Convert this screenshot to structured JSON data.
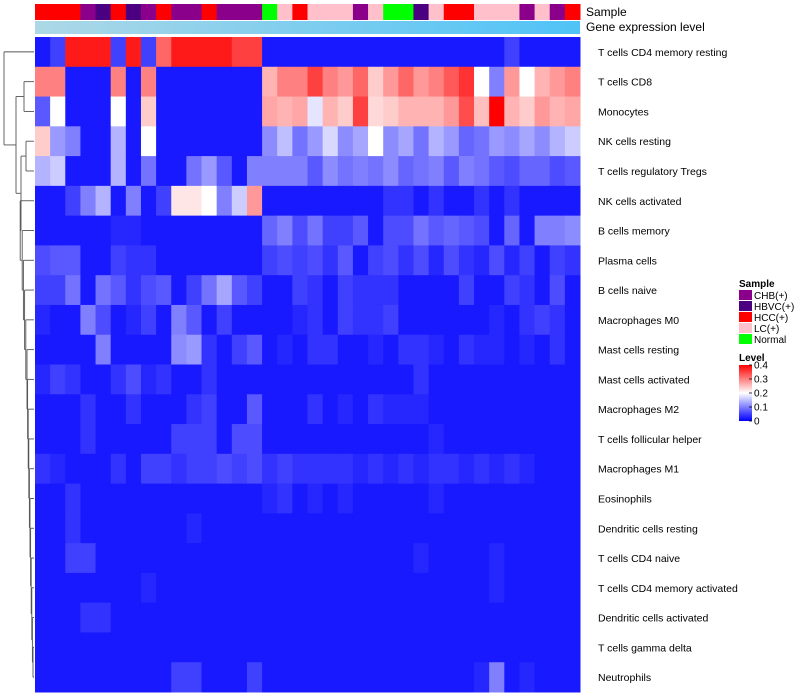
{
  "chart_data": {
    "type": "heatmap",
    "title": "",
    "annotation_labels": {
      "sample": "Sample",
      "expression": "Gene expression level"
    },
    "sample_groups": [
      {
        "name": "CHB(+)",
        "color": "#8B008B"
      },
      {
        "name": "HBVC(+)",
        "color": "#4B0082"
      },
      {
        "name": "HCC(+)",
        "color": "#FF0000"
      },
      {
        "name": "LC(+)",
        "color": "#FFC0CB"
      },
      {
        "name": "Normal",
        "color": "#00FF00"
      }
    ],
    "sample_annotation": [
      "HCC(+)",
      "HCC(+)",
      "HCC(+)",
      "CHB(+)",
      "HBVC(+)",
      "HCC(+)",
      "HBVC(+)",
      "CHB(+)",
      "HCC(+)",
      "CHB(+)",
      "CHB(+)",
      "HCC(+)",
      "CHB(+)",
      "CHB(+)",
      "CHB(+)",
      "Normal",
      "LC(+)",
      "HCC(+)",
      "LC(+)",
      "LC(+)",
      "LC(+)",
      "CHB(+)",
      "LC(+)",
      "Normal",
      "Normal",
      "HBVC(+)",
      "LC(+)",
      "HCC(+)",
      "HCC(+)",
      "LC(+)",
      "LC(+)",
      "LC(+)",
      "CHB(+)",
      "LC(+)",
      "CHB(+)",
      "HCC(+)"
    ],
    "row_labels": [
      "T cells CD4 memory resting",
      "T cells CD8",
      "Monocytes",
      "NK cells resting",
      "T cells regulatory  Tregs",
      "NK cells activated",
      "B cells memory",
      "Plasma cells",
      "B cells naive",
      "Macrophages M0",
      "Mast cells resting",
      "Mast cells activated",
      "Macrophages M2",
      "T cells follicular helper",
      "Macrophages M1",
      "Eosinophils",
      "Dendritic cells resting",
      "T cells CD4 naive",
      "T cells CD4 memory activated",
      "Dendritic cells activated",
      "T cells gamma delta",
      "Neutrophils"
    ],
    "values": [
      [
        0.02,
        0.05,
        0.38,
        0.38,
        0.38,
        0.05,
        0.38,
        0.05,
        0.32,
        0.38,
        0.38,
        0.38,
        0.38,
        0.35,
        0.35,
        0.02,
        0.02,
        0.02,
        0.02,
        0.02,
        0.02,
        0.02,
        0.02,
        0.02,
        0.02,
        0.02,
        0.02,
        0.02,
        0.02,
        0.02,
        0.02,
        0.05,
        0.02,
        0.02,
        0.02,
        0.02
      ],
      [
        0.3,
        0.3,
        0.02,
        0.02,
        0.02,
        0.3,
        0.02,
        0.3,
        0.02,
        0.02,
        0.02,
        0.02,
        0.02,
        0.02,
        0.02,
        0.26,
        0.3,
        0.3,
        0.35,
        0.3,
        0.28,
        0.32,
        0.24,
        0.28,
        0.32,
        0.28,
        0.3,
        0.33,
        0.36,
        0.2,
        0.1,
        0.28,
        0.2,
        0.26,
        0.28,
        0.3
      ],
      [
        0.07,
        0.2,
        0.02,
        0.02,
        0.02,
        0.2,
        0.02,
        0.24,
        0.02,
        0.02,
        0.02,
        0.02,
        0.02,
        0.02,
        0.02,
        0.27,
        0.26,
        0.27,
        0.18,
        0.26,
        0.24,
        0.35,
        0.23,
        0.24,
        0.26,
        0.26,
        0.26,
        0.28,
        0.34,
        0.25,
        0.4,
        0.26,
        0.24,
        0.28,
        0.26,
        0.27
      ],
      [
        0.24,
        0.12,
        0.1,
        0.02,
        0.02,
        0.14,
        0.02,
        0.2,
        0.02,
        0.02,
        0.02,
        0.02,
        0.02,
        0.02,
        0.02,
        0.11,
        0.15,
        0.09,
        0.12,
        0.17,
        0.11,
        0.13,
        0.2,
        0.11,
        0.13,
        0.09,
        0.14,
        0.12,
        0.08,
        0.09,
        0.12,
        0.11,
        0.13,
        0.11,
        0.14,
        0.16
      ],
      [
        0.14,
        0.16,
        0.02,
        0.02,
        0.02,
        0.14,
        0.02,
        0.09,
        0.02,
        0.02,
        0.09,
        0.12,
        0.07,
        0.02,
        0.1,
        0.1,
        0.1,
        0.1,
        0.07,
        0.11,
        0.09,
        0.1,
        0.09,
        0.11,
        0.08,
        0.09,
        0.1,
        0.07,
        0.1,
        0.09,
        0.07,
        0.06,
        0.08,
        0.08,
        0.06,
        0.07
      ],
      [
        0.02,
        0.02,
        0.05,
        0.1,
        0.14,
        0.02,
        0.1,
        0.02,
        0.05,
        0.22,
        0.22,
        0.2,
        0.1,
        0.16,
        0.28,
        0.02,
        0.02,
        0.02,
        0.02,
        0.02,
        0.02,
        0.02,
        0.02,
        0.04,
        0.04,
        0.02,
        0.04,
        0.02,
        0.02,
        0.04,
        0.02,
        0.04,
        0.02,
        0.02,
        0.02,
        0.02
      ],
      [
        0.02,
        0.02,
        0.02,
        0.02,
        0.02,
        0.03,
        0.03,
        0.02,
        0.02,
        0.02,
        0.02,
        0.02,
        0.02,
        0.02,
        0.02,
        0.08,
        0.1,
        0.06,
        0.09,
        0.05,
        0.05,
        0.07,
        0.02,
        0.06,
        0.06,
        0.09,
        0.07,
        0.08,
        0.07,
        0.06,
        0.02,
        0.08,
        0.02,
        0.1,
        0.1,
        0.11
      ],
      [
        0.06,
        0.07,
        0.07,
        0.02,
        0.02,
        0.05,
        0.04,
        0.04,
        0.02,
        0.02,
        0.02,
        0.02,
        0.02,
        0.02,
        0.02,
        0.05,
        0.06,
        0.05,
        0.06,
        0.04,
        0.07,
        0.02,
        0.05,
        0.06,
        0.04,
        0.06,
        0.03,
        0.06,
        0.04,
        0.03,
        0.06,
        0.03,
        0.05,
        0.02,
        0.05,
        0.04
      ],
      [
        0.05,
        0.05,
        0.09,
        0.02,
        0.09,
        0.07,
        0.04,
        0.06,
        0.07,
        0.02,
        0.05,
        0.09,
        0.13,
        0.07,
        0.05,
        0.02,
        0.02,
        0.05,
        0.04,
        0.02,
        0.05,
        0.04,
        0.04,
        0.04,
        0.02,
        0.02,
        0.02,
        0.02,
        0.05,
        0.02,
        0.02,
        0.05,
        0.04,
        0.02,
        0.06,
        0.02
      ],
      [
        0.03,
        0.02,
        0.02,
        0.1,
        0.06,
        0.02,
        0.03,
        0.05,
        0.02,
        0.1,
        0.07,
        0.02,
        0.05,
        0.02,
        0.02,
        0.02,
        0.02,
        0.03,
        0.04,
        0.02,
        0.05,
        0.04,
        0.04,
        0.05,
        0.02,
        0.02,
        0.02,
        0.02,
        0.02,
        0.02,
        0.03,
        0.02,
        0.04,
        0.05,
        0.04,
        0.02
      ],
      [
        0.02,
        0.02,
        0.02,
        0.02,
        0.1,
        0.02,
        0.02,
        0.02,
        0.02,
        0.11,
        0.12,
        0.04,
        0.02,
        0.05,
        0.07,
        0.02,
        0.03,
        0.02,
        0.04,
        0.04,
        0.02,
        0.02,
        0.03,
        0.02,
        0.04,
        0.04,
        0.03,
        0.02,
        0.04,
        0.03,
        0.03,
        0.02,
        0.03,
        0.02,
        0.04,
        0.02
      ],
      [
        0.03,
        0.05,
        0.04,
        0.02,
        0.02,
        0.04,
        0.06,
        0.03,
        0.04,
        0.02,
        0.02,
        0.04,
        0.02,
        0.02,
        0.02,
        0.02,
        0.02,
        0.02,
        0.02,
        0.02,
        0.02,
        0.02,
        0.02,
        0.02,
        0.02,
        0.04,
        0.02,
        0.02,
        0.02,
        0.02,
        0.02,
        0.02,
        0.02,
        0.02,
        0.02,
        0.02
      ],
      [
        0.02,
        0.02,
        0.02,
        0.04,
        0.02,
        0.02,
        0.04,
        0.02,
        0.02,
        0.02,
        0.04,
        0.05,
        0.02,
        0.02,
        0.07,
        0.02,
        0.02,
        0.02,
        0.04,
        0.02,
        0.03,
        0.02,
        0.04,
        0.03,
        0.03,
        0.03,
        0.02,
        0.02,
        0.02,
        0.02,
        0.02,
        0.02,
        0.02,
        0.02,
        0.02,
        0.02
      ],
      [
        0.02,
        0.02,
        0.02,
        0.04,
        0.02,
        0.02,
        0.02,
        0.02,
        0.02,
        0.05,
        0.05,
        0.05,
        0.02,
        0.06,
        0.06,
        0.02,
        0.02,
        0.02,
        0.02,
        0.02,
        0.02,
        0.02,
        0.02,
        0.02,
        0.02,
        0.02,
        0.03,
        0.02,
        0.02,
        0.02,
        0.02,
        0.02,
        0.02,
        0.02,
        0.02,
        0.02
      ],
      [
        0.04,
        0.03,
        0.02,
        0.02,
        0.02,
        0.04,
        0.02,
        0.05,
        0.05,
        0.04,
        0.05,
        0.05,
        0.06,
        0.05,
        0.06,
        0.04,
        0.05,
        0.04,
        0.04,
        0.04,
        0.04,
        0.03,
        0.04,
        0.03,
        0.04,
        0.03,
        0.04,
        0.04,
        0.03,
        0.04,
        0.03,
        0.04,
        0.03,
        0.02,
        0.02,
        0.02
      ],
      [
        0.02,
        0.02,
        0.04,
        0.02,
        0.02,
        0.02,
        0.02,
        0.02,
        0.02,
        0.02,
        0.02,
        0.02,
        0.02,
        0.02,
        0.02,
        0.03,
        0.04,
        0.02,
        0.03,
        0.02,
        0.03,
        0.02,
        0.02,
        0.02,
        0.02,
        0.02,
        0.03,
        0.02,
        0.02,
        0.02,
        0.02,
        0.02,
        0.02,
        0.02,
        0.02,
        0.02
      ],
      [
        0.02,
        0.02,
        0.04,
        0.02,
        0.02,
        0.02,
        0.02,
        0.02,
        0.02,
        0.02,
        0.03,
        0.02,
        0.02,
        0.02,
        0.02,
        0.02,
        0.02,
        0.02,
        0.02,
        0.02,
        0.02,
        0.02,
        0.02,
        0.02,
        0.02,
        0.02,
        0.02,
        0.02,
        0.02,
        0.02,
        0.02,
        0.02,
        0.02,
        0.02,
        0.02,
        0.02
      ],
      [
        0.02,
        0.02,
        0.05,
        0.05,
        0.02,
        0.02,
        0.02,
        0.02,
        0.02,
        0.02,
        0.02,
        0.02,
        0.02,
        0.02,
        0.02,
        0.02,
        0.02,
        0.02,
        0.02,
        0.02,
        0.02,
        0.02,
        0.02,
        0.02,
        0.02,
        0.03,
        0.02,
        0.02,
        0.02,
        0.02,
        0.03,
        0.02,
        0.02,
        0.02,
        0.02,
        0.02
      ],
      [
        0.02,
        0.02,
        0.02,
        0.02,
        0.02,
        0.02,
        0.02,
        0.03,
        0.02,
        0.02,
        0.02,
        0.02,
        0.02,
        0.02,
        0.02,
        0.02,
        0.02,
        0.02,
        0.02,
        0.02,
        0.02,
        0.02,
        0.02,
        0.02,
        0.02,
        0.02,
        0.02,
        0.02,
        0.02,
        0.02,
        0.03,
        0.02,
        0.02,
        0.02,
        0.02,
        0.02
      ],
      [
        0.02,
        0.02,
        0.02,
        0.04,
        0.04,
        0.02,
        0.02,
        0.02,
        0.02,
        0.02,
        0.02,
        0.02,
        0.02,
        0.02,
        0.02,
        0.02,
        0.02,
        0.02,
        0.02,
        0.02,
        0.02,
        0.02,
        0.02,
        0.02,
        0.02,
        0.02,
        0.02,
        0.02,
        0.02,
        0.02,
        0.02,
        0.02,
        0.02,
        0.02,
        0.02,
        0.02
      ],
      [
        0.02,
        0.02,
        0.02,
        0.02,
        0.02,
        0.02,
        0.02,
        0.02,
        0.02,
        0.02,
        0.02,
        0.02,
        0.02,
        0.02,
        0.02,
        0.02,
        0.02,
        0.02,
        0.02,
        0.02,
        0.02,
        0.02,
        0.02,
        0.02,
        0.02,
        0.02,
        0.02,
        0.02,
        0.02,
        0.02,
        0.02,
        0.02,
        0.02,
        0.02,
        0.02,
        0.02
      ],
      [
        0.02,
        0.02,
        0.02,
        0.02,
        0.02,
        0.02,
        0.02,
        0.02,
        0.02,
        0.05,
        0.05,
        0.02,
        0.02,
        0.02,
        0.05,
        0.02,
        0.02,
        0.02,
        0.02,
        0.02,
        0.02,
        0.02,
        0.02,
        0.02,
        0.02,
        0.02,
        0.02,
        0.02,
        0.02,
        0.03,
        0.1,
        0.02,
        0.03,
        0.02,
        0.02,
        0.02
      ]
    ],
    "value_range": [
      0,
      0.4
    ],
    "color_scale": [
      "#0000FF",
      "#FFFFFF",
      "#FF0000"
    ],
    "expression_gradient": [
      "#ADD8E6",
      "#4FC3F7"
    ],
    "legend": {
      "sample_title": "Sample",
      "level_title": "Level",
      "level_ticks": [
        "0.4",
        "0.3",
        "0.2",
        "0.1",
        "0"
      ]
    }
  }
}
